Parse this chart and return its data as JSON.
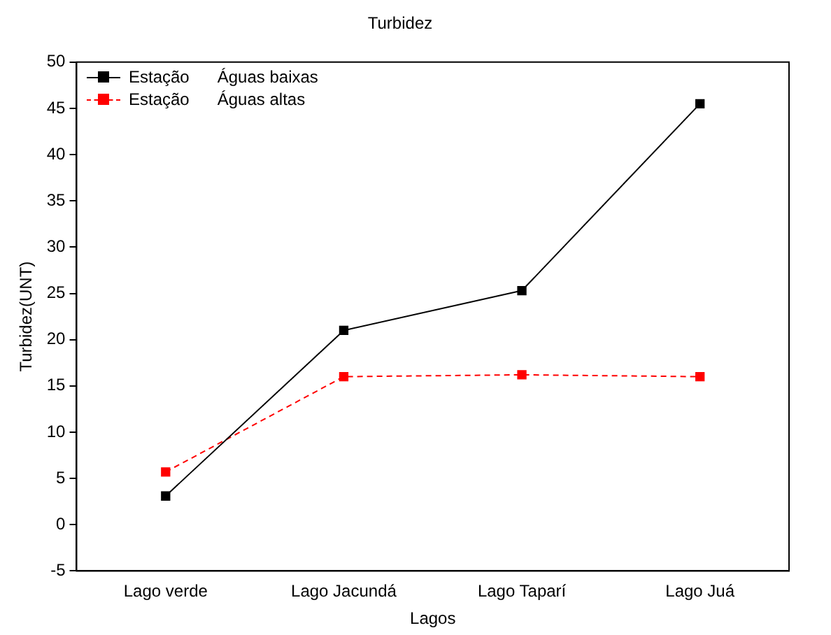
{
  "chart_data": {
    "type": "line",
    "title": "Turbidez",
    "xlabel": "Lagos",
    "ylabel": "Turbidez(UNT)",
    "categories": [
      "Lago verde",
      "Lago Jacundá",
      "Lago Taparí",
      "Lago Juá"
    ],
    "series": [
      {
        "name": "Estação      Águas baixas",
        "color": "#000000",
        "values": [
          3.1,
          21.0,
          25.3,
          45.5
        ],
        "line_style": "solid"
      },
      {
        "name": "Estação      Águas altas",
        "color": "#ff0000",
        "values": [
          5.7,
          16.0,
          16.2,
          16.0
        ],
        "line_style": "dashed"
      }
    ],
    "ylim": [
      -5,
      50
    ],
    "yticks": [
      -5,
      0,
      5,
      10,
      15,
      20,
      25,
      30,
      35,
      40,
      45,
      50
    ],
    "grid": false,
    "legend": "top left",
    "marker": "square"
  }
}
